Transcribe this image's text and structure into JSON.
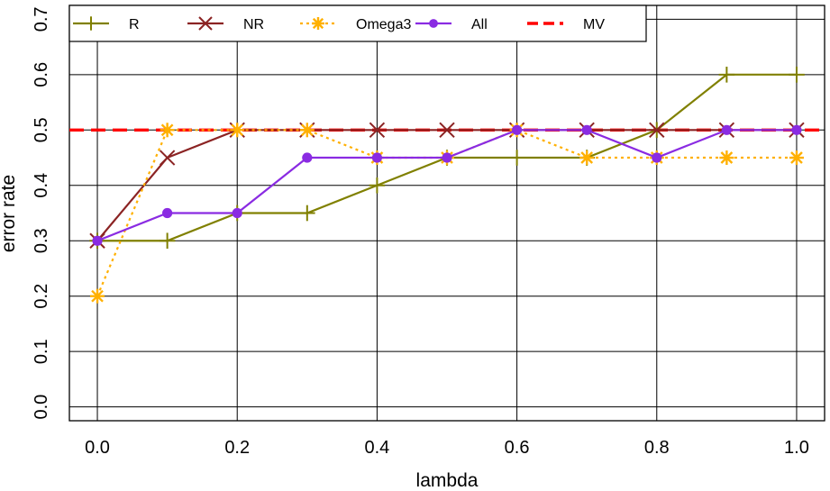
{
  "chart_data": {
    "type": "line",
    "title": "",
    "xlabel": "lambda",
    "ylabel": "error rate",
    "xlim": [
      -0.04,
      1.04
    ],
    "ylim": [
      -0.025,
      0.725
    ],
    "x_ticks": [
      "0.0",
      "0.2",
      "0.4",
      "0.6",
      "0.8",
      "1.0"
    ],
    "y_ticks": [
      "0.0",
      "0.1",
      "0.2",
      "0.3",
      "0.4",
      "0.5",
      "0.6",
      "0.7"
    ],
    "grid": true,
    "legend_position": "top-left",
    "x": [
      0.0,
      0.1,
      0.2,
      0.3,
      0.4,
      0.5,
      0.6,
      0.7,
      0.8,
      0.9,
      1.0
    ],
    "series": [
      {
        "name": "R",
        "color": "#808000",
        "marker": "plus",
        "dash": "solid",
        "values": [
          0.3,
          0.3,
          0.35,
          0.35,
          0.4,
          0.45,
          0.45,
          0.45,
          0.5,
          0.6,
          0.6
        ]
      },
      {
        "name": "NR",
        "color": "#8B2323",
        "marker": "cross",
        "dash": "solid",
        "values": [
          0.3,
          0.45,
          0.5,
          0.5,
          0.5,
          0.5,
          0.5,
          0.5,
          0.5,
          0.5,
          0.5
        ]
      },
      {
        "name": "Omega3",
        "color": "#FFB000",
        "marker": "asterisk",
        "dash": "dotted",
        "values": [
          0.2,
          0.5,
          0.5,
          0.5,
          0.45,
          0.45,
          0.5,
          0.45,
          0.45,
          0.45,
          0.45
        ]
      },
      {
        "name": "All",
        "color": "#8A2BE2",
        "marker": "circle",
        "dash": "solid",
        "values": [
          0.3,
          0.35,
          0.35,
          0.45,
          0.45,
          0.45,
          0.5,
          0.5,
          0.45,
          0.5,
          0.5
        ]
      }
    ],
    "reference_lines": [
      {
        "name": "MV",
        "color": "#FF0000",
        "dash": "dashed",
        "y": 0.5
      }
    ]
  }
}
